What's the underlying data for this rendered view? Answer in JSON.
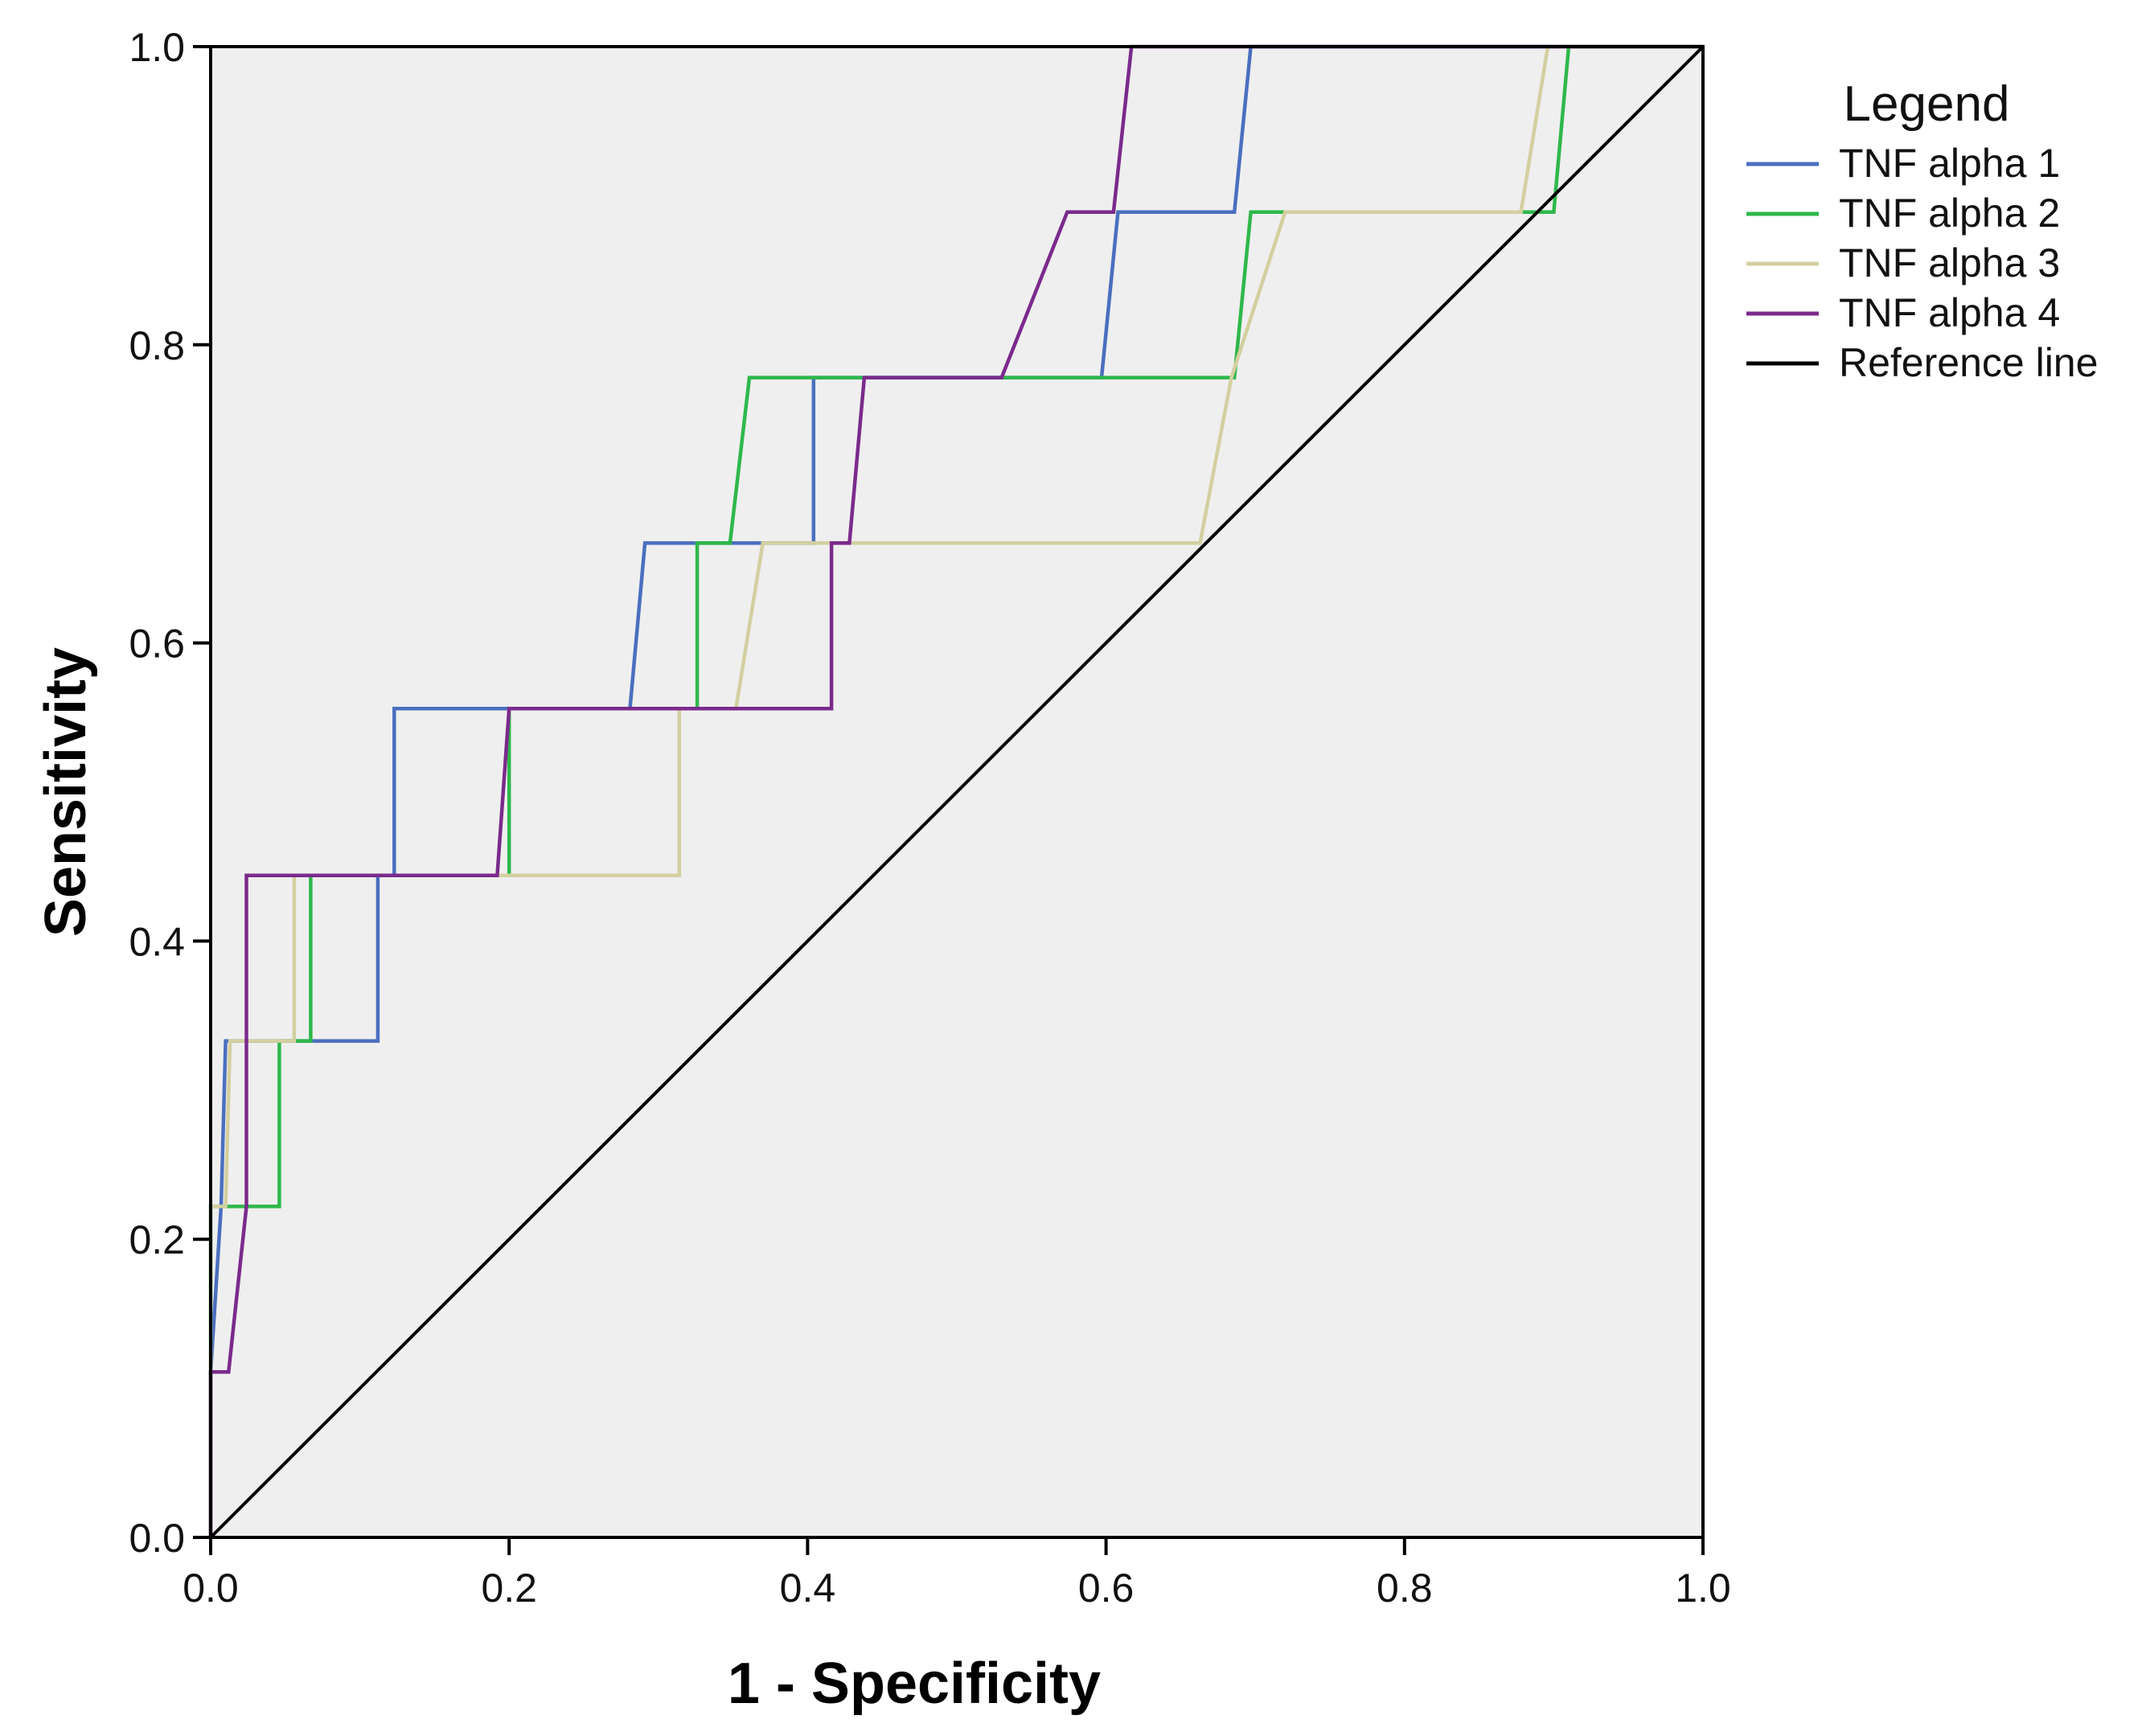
{
  "chart_data": {
    "type": "line",
    "title": "",
    "xlabel": "1 - Specificity",
    "ylabel": "Sensitivity",
    "xlim": [
      0,
      1
    ],
    "ylim": [
      0,
      1
    ],
    "xticks": [
      "0.0",
      "0.2",
      "0.4",
      "0.6",
      "0.8",
      "1.0"
    ],
    "yticks": [
      "0.0",
      "0.2",
      "0.4",
      "0.6",
      "0.8",
      "1.0"
    ],
    "grid": false,
    "background": "#efefef",
    "legend": {
      "title": "Legend",
      "position": "right"
    },
    "series": [
      {
        "name": "TNF alpha 1",
        "color": "#4a6fbf",
        "points": [
          [
            0,
            0
          ],
          [
            0,
            0.111
          ],
          [
            0.007,
            0.222
          ],
          [
            0.01,
            0.333
          ],
          [
            0.112,
            0.333
          ],
          [
            0.112,
            0.444
          ],
          [
            0.123,
            0.444
          ],
          [
            0.123,
            0.556
          ],
          [
            0.281,
            0.556
          ],
          [
            0.291,
            0.667
          ],
          [
            0.404,
            0.667
          ],
          [
            0.404,
            0.778
          ],
          [
            0.597,
            0.778
          ],
          [
            0.608,
            0.889
          ],
          [
            0.686,
            0.889
          ],
          [
            0.697,
            1.0
          ],
          [
            1.0,
            1.0
          ]
        ]
      },
      {
        "name": "TNF alpha 2",
        "color": "#2eb84a",
        "points": [
          [
            0,
            0
          ],
          [
            0,
            0.222
          ],
          [
            0.046,
            0.222
          ],
          [
            0.046,
            0.333
          ],
          [
            0.067,
            0.333
          ],
          [
            0.067,
            0.444
          ],
          [
            0.2,
            0.444
          ],
          [
            0.2,
            0.556
          ],
          [
            0.326,
            0.556
          ],
          [
            0.326,
            0.667
          ],
          [
            0.348,
            0.667
          ],
          [
            0.361,
            0.778
          ],
          [
            0.686,
            0.778
          ],
          [
            0.697,
            0.889
          ],
          [
            0.9,
            0.889
          ],
          [
            0.91,
            1.0
          ],
          [
            1.0,
            1.0
          ]
        ]
      },
      {
        "name": "TNF alpha 3",
        "color": "#d4cfa0",
        "points": [
          [
            0,
            0
          ],
          [
            0,
            0.222
          ],
          [
            0.01,
            0.222
          ],
          [
            0.013,
            0.333
          ],
          [
            0.056,
            0.333
          ],
          [
            0.056,
            0.444
          ],
          [
            0.314,
            0.444
          ],
          [
            0.314,
            0.556
          ],
          [
            0.352,
            0.556
          ],
          [
            0.37,
            0.667
          ],
          [
            0.663,
            0.667
          ],
          [
            0.684,
            0.778
          ],
          [
            0.72,
            0.889
          ],
          [
            0.878,
            0.889
          ],
          [
            0.896,
            1.0
          ],
          [
            1.0,
            1.0
          ]
        ]
      },
      {
        "name": "TNF alpha 4",
        "color": "#7b2a8c",
        "points": [
          [
            0,
            0
          ],
          [
            0,
            0.111
          ],
          [
            0.012,
            0.111
          ],
          [
            0.024,
            0.222
          ],
          [
            0.024,
            0.444
          ],
          [
            0.192,
            0.444
          ],
          [
            0.2,
            0.556
          ],
          [
            0.416,
            0.556
          ],
          [
            0.416,
            0.667
          ],
          [
            0.428,
            0.667
          ],
          [
            0.438,
            0.778
          ],
          [
            0.53,
            0.778
          ],
          [
            0.574,
            0.889
          ],
          [
            0.605,
            0.889
          ],
          [
            0.617,
            1.0
          ],
          [
            1.0,
            1.0
          ]
        ]
      },
      {
        "name": "Reference line",
        "color": "#000000",
        "points": [
          [
            0,
            0
          ],
          [
            1,
            1
          ]
        ]
      }
    ]
  }
}
